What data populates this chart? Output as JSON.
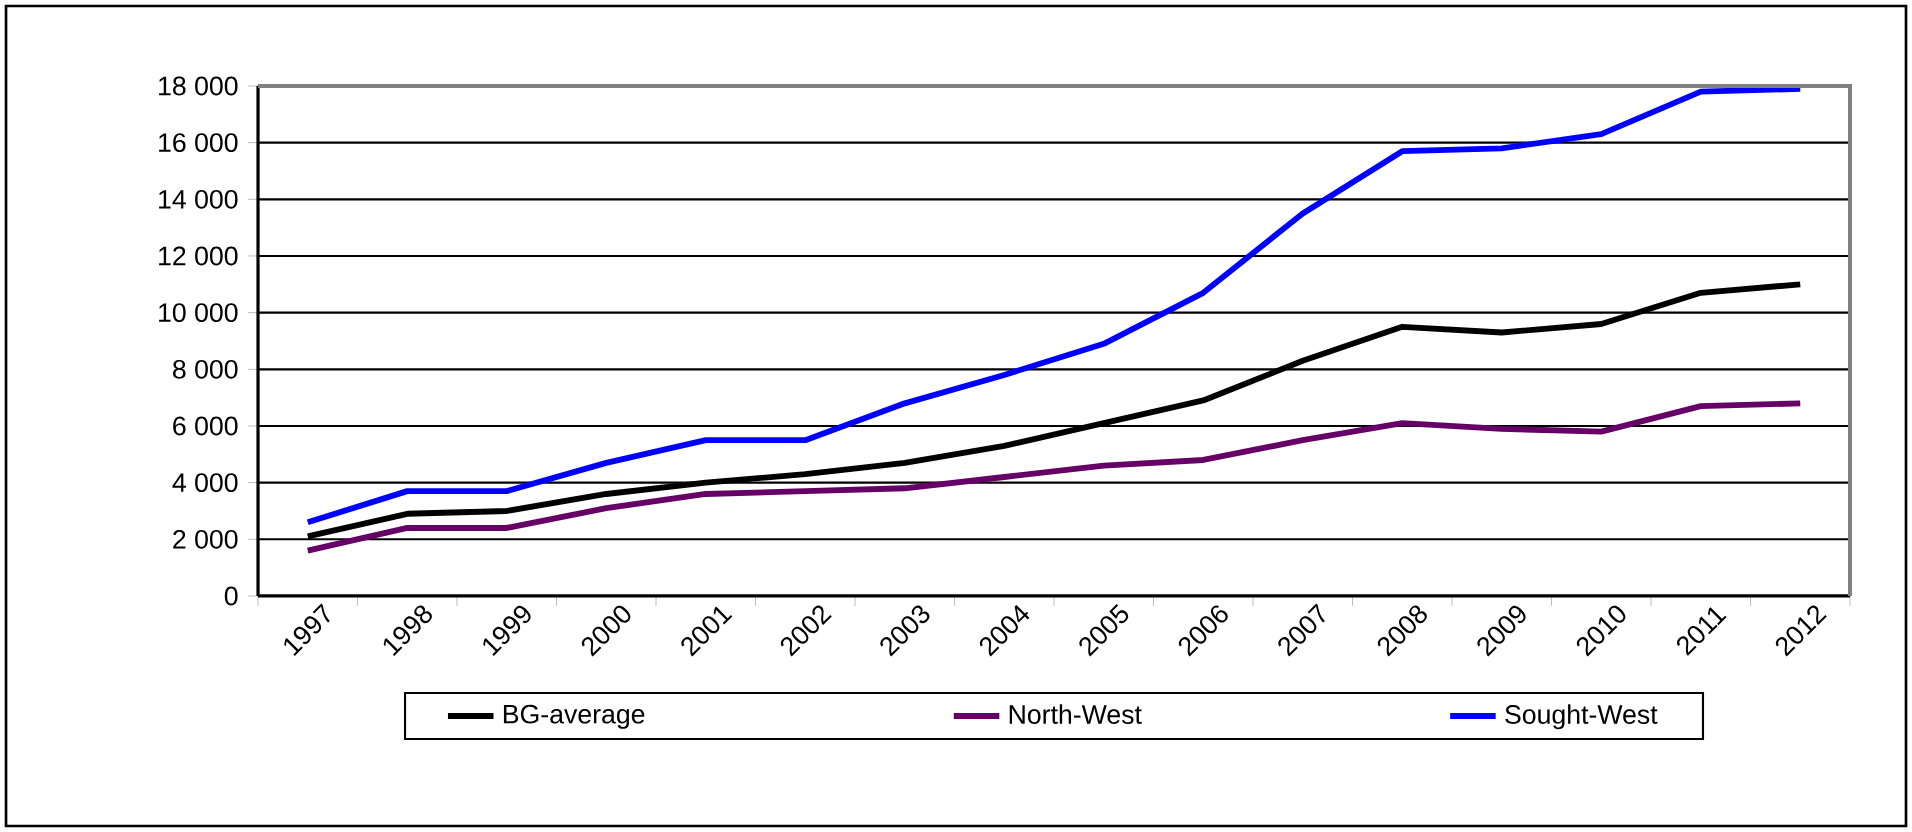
{
  "chart_data": {
    "type": "line",
    "categories": [
      "1997",
      "1998",
      "1999",
      "2000",
      "2001",
      "2002",
      "2003",
      "2004",
      "2005",
      "2006",
      "2007",
      "2008",
      "2009",
      "2010",
      "2011",
      "2012"
    ],
    "series": [
      {
        "name": "BG-average",
        "color": "#000000",
        "values": [
          2100,
          2900,
          3000,
          3600,
          4000,
          4300,
          4700,
          5300,
          6100,
          6900,
          8300,
          9500,
          9300,
          9600,
          10700,
          11000
        ]
      },
      {
        "name": "North-West",
        "color": "#660066",
        "values": [
          1600,
          2400,
          2400,
          3100,
          3600,
          3700,
          3800,
          4200,
          4600,
          4800,
          5500,
          6100,
          5900,
          5800,
          6700,
          6800
        ]
      },
      {
        "name": "Sought-West",
        "color": "#0000ff",
        "values": [
          2600,
          3700,
          3700,
          4700,
          5500,
          5500,
          6800,
          7800,
          8900,
          10700,
          13500,
          15700,
          15800,
          16300,
          17800,
          17900
        ]
      }
    ],
    "ylim": [
      0,
      18000
    ],
    "yticks": [
      0,
      {
        "value": 2000,
        "label": "2 000"
      },
      {
        "value": 4000,
        "label": "4 000"
      },
      {
        "value": 6000,
        "label": "6 000"
      },
      {
        "value": 8000,
        "label": "8 000"
      },
      {
        "value": 10000,
        "label": "10 000"
      },
      {
        "value": 12000,
        "label": "12 000"
      },
      {
        "value": 14000,
        "label": "14 000"
      },
      {
        "value": 16000,
        "label": "16 000"
      },
      {
        "value": 18000,
        "label": "18 000"
      }
    ],
    "grid": "y",
    "legend": "bottom"
  }
}
